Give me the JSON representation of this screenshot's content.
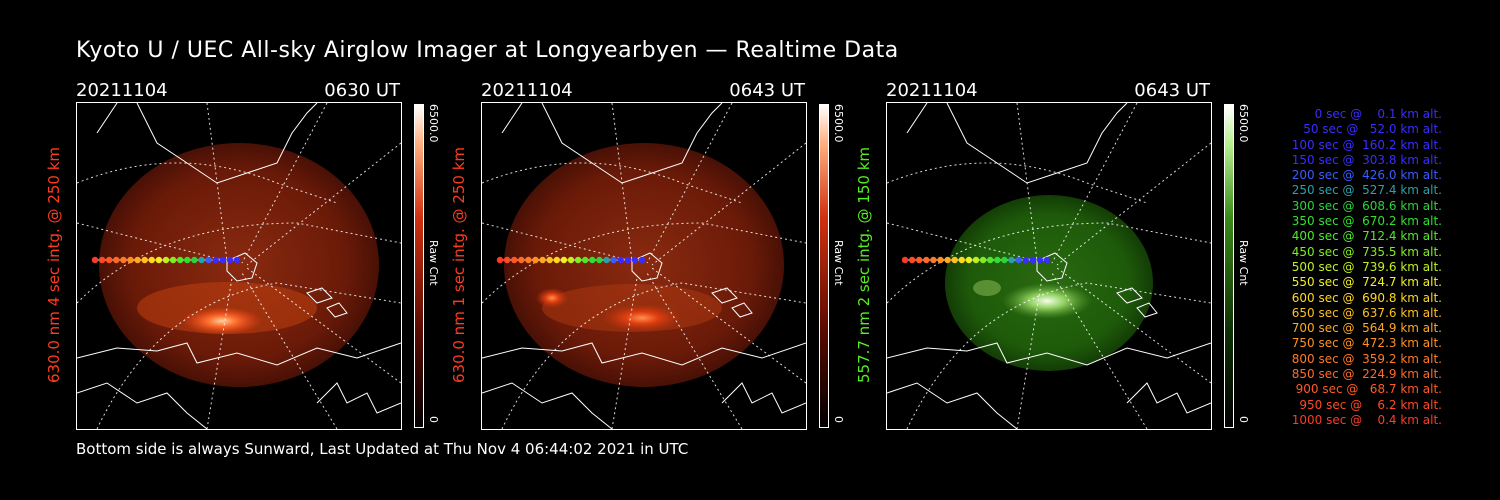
{
  "title": "Kyoto U / UEC All-sky Airglow Imager at Longyearbyen — Realtime Data",
  "footer": "Bottom side is always Sunward, Last Updated at Thu Nov  4 06:44:02 2021 in UTC",
  "panels": [
    {
      "date": "20211104",
      "time": "0630 UT",
      "side_label": "630.0 nm 4 sec intg. @ 250 km",
      "colorbar_max": "6500.0",
      "colorbar_min": "0",
      "colorbar_label": "Raw Cnt",
      "color": "#ff3b1f",
      "theme": "red"
    },
    {
      "date": "20211104",
      "time": "0643 UT",
      "side_label": "630.0 nm 1 sec intg. @ 250 km",
      "colorbar_max": "6500.0",
      "colorbar_min": "0",
      "colorbar_label": "Raw Cnt",
      "color": "#ff3b1f",
      "theme": "red"
    },
    {
      "date": "20211104",
      "time": "0643 UT",
      "side_label": "557.7 nm 2 sec intg. @ 150 km",
      "colorbar_max": "6500.0",
      "colorbar_min": "0",
      "colorbar_label": "Raw Cnt",
      "color": "#55ee22",
      "theme": "green"
    }
  ],
  "legend": [
    {
      "text": "   0 sec @    0.1 km alt.",
      "color": "#3a2cff"
    },
    {
      "text": "  50 sec @   52.0 km alt.",
      "color": "#3a2cff"
    },
    {
      "text": " 100 sec @  160.2 km alt.",
      "color": "#3a2cff"
    },
    {
      "text": " 150 sec @  303.8 km alt.",
      "color": "#3a2cff"
    },
    {
      "text": " 200 sec @  426.0 km alt.",
      "color": "#3a5cff"
    },
    {
      "text": " 250 sec @  527.4 km alt.",
      "color": "#2aa0a8"
    },
    {
      "text": " 300 sec @  608.6 km alt.",
      "color": "#29d43c"
    },
    {
      "text": " 350 sec @  670.2 km alt.",
      "color": "#30e030"
    },
    {
      "text": " 400 sec @  712.4 km alt.",
      "color": "#50e82a"
    },
    {
      "text": " 450 sec @  735.5 km alt.",
      "color": "#80ee20"
    },
    {
      "text": " 500 sec @  739.6 km alt.",
      "color": "#c0f020"
    },
    {
      "text": " 550 sec @  724.7 km alt.",
      "color": "#f0f020"
    },
    {
      "text": " 600 sec @  690.8 km alt.",
      "color": "#ffd820"
    },
    {
      "text": " 650 sec @  637.6 km alt.",
      "color": "#ffc020"
    },
    {
      "text": " 700 sec @  564.9 km alt.",
      "color": "#ffa820"
    },
    {
      "text": " 750 sec @  472.3 km alt.",
      "color": "#ff9020"
    },
    {
      "text": " 800 sec @  359.2 km alt.",
      "color": "#ff7a24"
    },
    {
      "text": " 850 sec @  224.9 km alt.",
      "color": "#ff6a26"
    },
    {
      "text": " 900 sec @   68.7 km alt.",
      "color": "#ff5a26"
    },
    {
      "text": " 950 sec @    6.2 km alt.",
      "color": "#ff4a26"
    },
    {
      "text": "1000 sec @    0.4 km alt.",
      "color": "#ff3a26"
    }
  ]
}
